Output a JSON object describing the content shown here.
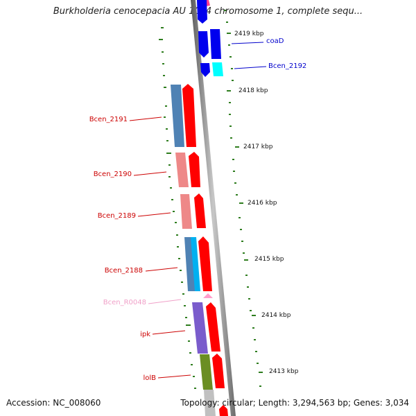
{
  "title": "Burkholderia cenocepacia AU 1054 chromosome 1, complete sequ...",
  "footer": {
    "accession": "Accession: NC_008060",
    "topology": "Topology: circular; Length: 3,294,563 bp; Genes: 3,034"
  },
  "scale_labels": [
    "2419 kbp",
    "2418 kbp",
    "2417 kbp",
    "2416 kbp",
    "2415 kbp",
    "2414 kbp",
    "2413 kbp"
  ],
  "gene_labels": [
    {
      "text": "coaD",
      "color": "#0000cc"
    },
    {
      "text": "Bcen_2192",
      "color": "#0000cc"
    },
    {
      "text": "Bcen_2191",
      "color": "#cc0000"
    },
    {
      "text": "Bcen_2190",
      "color": "#cc0000"
    },
    {
      "text": "Bcen_2189",
      "color": "#cc0000"
    },
    {
      "text": "Bcen_2188",
      "color": "#cc0000"
    },
    {
      "text": "Bcen_R0048",
      "color": "#f0a0c8"
    },
    {
      "text": "ipk",
      "color": "#cc0000"
    },
    {
      "text": "lolB",
      "color": "#cc0000"
    }
  ],
  "colors": {
    "backbone": "#8a8a8a",
    "tick": "#2e7d1e",
    "red": "#ff0000",
    "blue": "#0000ee",
    "cyan": "#00ffff",
    "salmon": "#ee8888",
    "steel": "#4f82b4",
    "purple": "#7a5ccc",
    "olive": "#6b8e23",
    "pink": "#ff69b4"
  }
}
